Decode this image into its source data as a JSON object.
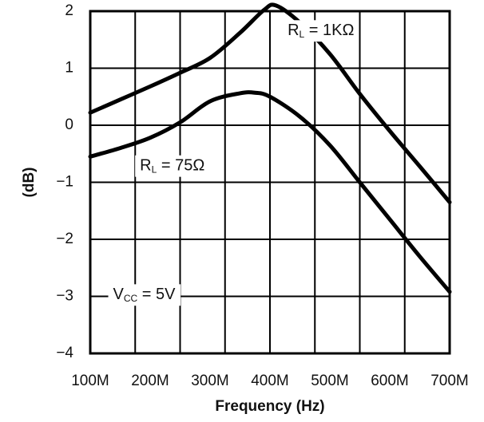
{
  "chart_data": {
    "type": "line",
    "title": "",
    "xlabel": "Frequency (Hz)",
    "ylabel": "(dB)",
    "x_ticks": [
      "100M",
      "200M",
      "300M",
      "400M",
      "500M",
      "600M",
      "700M"
    ],
    "x_values": [
      100,
      200,
      300,
      400,
      500,
      600,
      700
    ],
    "xlim": [
      100,
      700
    ],
    "y_ticks": [
      "2",
      "1",
      "0",
      "−1",
      "−2",
      "−3",
      "−4"
    ],
    "ylim": [
      -4,
      2
    ],
    "grid": true,
    "series": [
      {
        "x": [
          100,
          150,
          200,
          250,
          300,
          350,
          390,
          410,
          450,
          500,
          550,
          600,
          650,
          700
        ],
        "values": [
          0.22,
          0.45,
          0.68,
          0.92,
          1.18,
          1.62,
          2.02,
          2.1,
          1.8,
          1.25,
          0.55,
          -0.1,
          -0.72,
          -1.35
        ]
      },
      {
        "x": [
          100,
          150,
          200,
          250,
          300,
          350,
          375,
          400,
          450,
          500,
          550,
          600,
          650,
          700
        ],
        "values": [
          -0.55,
          -0.4,
          -0.22,
          0.05,
          0.42,
          0.56,
          0.57,
          0.5,
          0.15,
          -0.35,
          -1.0,
          -1.65,
          -2.3,
          -2.92
        ]
      }
    ],
    "annotations": [
      {
        "main": "R",
        "sub": "L",
        "rest": " = 1KΩ",
        "x": 485,
        "y": 1.65
      },
      {
        "main": "R",
        "sub": "L",
        "rest": " = 75Ω",
        "x": 237,
        "y": -0.72
      },
      {
        "main": "V",
        "sub": "CC",
        "rest": " = 5V",
        "x": 190,
        "y": -2.98
      }
    ]
  }
}
